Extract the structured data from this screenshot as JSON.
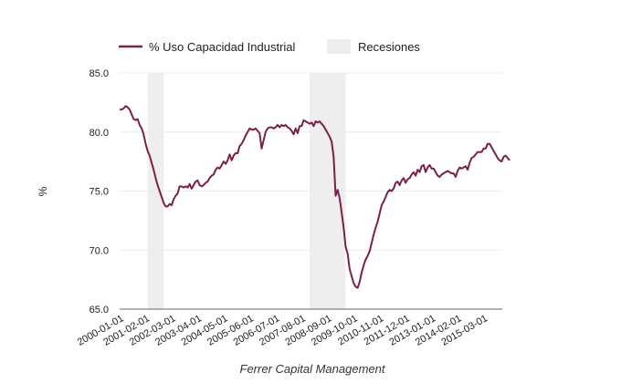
{
  "chart_data": {
    "type": "line",
    "title": "",
    "xlabel": "Ferrer Capital Management",
    "ylabel": "%",
    "ylim": [
      65.0,
      85.0
    ],
    "yticks": [
      "65.0",
      "70.0",
      "75.0",
      "80.0",
      "85.0"
    ],
    "grid": true,
    "legend_position": "top-left",
    "start_date": "2000-01-01",
    "frequency": "monthly",
    "xticks": [
      "2000-01-01",
      "2001-02-01",
      "2002-03-01",
      "2003-04-01",
      "2004-05-01",
      "2005-06-01",
      "2006-07-01",
      "2007-08-01",
      "2008-09-01",
      "2009-10-01",
      "2010-11-01",
      "2011-12-01",
      "2013-01-01",
      "2014-02-01",
      "2015-03-01"
    ],
    "series": [
      {
        "name": "% Uso Capacidad Industrial",
        "color": "#7b1f4b",
        "values": [
          81.9,
          81.9,
          82.0,
          82.2,
          82.1,
          81.9,
          81.5,
          81.1,
          81.0,
          81.1,
          80.6,
          80.3,
          79.8,
          79.0,
          78.4,
          78.0,
          77.4,
          76.8,
          76.1,
          75.5,
          75.0,
          74.5,
          74.0,
          73.7,
          73.7,
          73.9,
          73.8,
          74.3,
          74.6,
          74.8,
          75.4,
          75.4,
          75.3,
          75.4,
          75.3,
          75.6,
          75.2,
          75.5,
          75.8,
          75.9,
          75.5,
          75.4,
          75.5,
          75.7,
          75.8,
          76.1,
          76.3,
          76.4,
          76.8,
          77.0,
          76.9,
          77.2,
          77.5,
          77.3,
          77.6,
          78.1,
          77.6,
          78.0,
          78.2,
          78.2,
          78.8,
          79.0,
          79.3,
          79.7,
          80.0,
          80.3,
          80.2,
          80.2,
          80.3,
          80.1,
          79.9,
          78.6,
          79.3,
          80.0,
          80.3,
          80.4,
          80.4,
          80.3,
          80.4,
          80.6,
          80.4,
          80.6,
          80.5,
          80.6,
          80.4,
          80.3,
          80.1,
          79.8,
          80.3,
          79.9,
          80.5,
          80.5,
          81.0,
          80.9,
          80.8,
          80.7,
          80.8,
          80.5,
          80.9,
          80.8,
          80.9,
          80.7,
          80.5,
          80.2,
          79.9,
          79.6,
          79.2,
          77.9,
          74.6,
          75.1,
          74.4,
          73.2,
          71.9,
          70.3,
          69.7,
          68.4,
          67.8,
          67.2,
          66.9,
          66.8,
          67.3,
          68.1,
          68.7,
          69.2,
          69.5,
          69.9,
          70.6,
          71.3,
          71.9,
          72.4,
          73.1,
          73.8,
          74.1,
          74.5,
          74.9,
          75.1,
          75.0,
          75.2,
          75.7,
          75.8,
          75.5,
          75.9,
          76.1,
          75.7,
          76.0,
          76.1,
          76.4,
          76.6,
          76.3,
          76.8,
          76.6,
          77.1,
          77.2,
          76.6,
          77.0,
          77.2,
          76.9,
          76.9,
          76.6,
          76.3,
          76.2,
          76.4,
          76.5,
          76.6,
          76.7,
          76.6,
          76.5,
          76.5,
          76.2,
          76.7,
          77.0,
          76.9,
          77.0,
          77.1,
          76.8,
          77.4,
          77.8,
          77.9,
          78.1,
          78.3,
          78.3,
          78.3,
          78.6,
          78.6,
          79.0,
          79.0,
          78.7,
          78.4,
          78.1,
          77.8,
          77.6,
          77.5,
          77.9,
          78.0,
          77.8,
          77.6
        ]
      }
    ],
    "recessions": {
      "name": "Recesiones",
      "color": "#eeeeee",
      "periods": [
        {
          "start": "2001-03-01",
          "end": "2001-11-01"
        },
        {
          "start": "2007-12-01",
          "end": "2009-06-01"
        }
      ]
    }
  },
  "footer": "Ferrer Capital Management"
}
